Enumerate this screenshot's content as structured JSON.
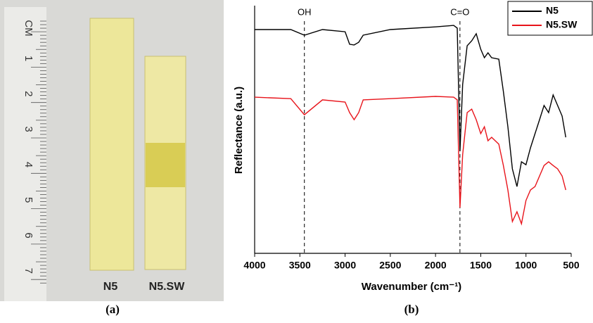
{
  "photo": {
    "ruler_unit": "CM",
    "ruler_marks": [
      1,
      2,
      3,
      4,
      5,
      6,
      7
    ],
    "samples": [
      "N5",
      "N5.SW"
    ],
    "caption": "(a)"
  },
  "chart_data": {
    "type": "line",
    "caption": "(b)",
    "x_label": "Wavenumber (cm⁻¹)",
    "y_label": "Reflectance (a.u.)",
    "xlim": [
      4000,
      500
    ],
    "xticks": [
      4000,
      3500,
      3000,
      2500,
      2000,
      1500,
      1000,
      500
    ],
    "ylim": [
      0,
      100
    ],
    "legend": "top-right",
    "annotations": [
      {
        "text": "OH",
        "x": 3450
      },
      {
        "text": "C=O",
        "x": 1730
      }
    ],
    "x": [
      4000,
      3600,
      3450,
      3250,
      3000,
      2950,
      2900,
      2850,
      2800,
      2500,
      2000,
      1800,
      1760,
      1730,
      1700,
      1650,
      1600,
      1550,
      1500,
      1460,
      1420,
      1380,
      1300,
      1250,
      1200,
      1150,
      1100,
      1050,
      1000,
      950,
      900,
      850,
      800,
      750,
      700,
      650,
      600,
      560
    ],
    "series": [
      {
        "name": "N5",
        "color": "#000000",
        "values": [
          90.8,
          90.8,
          88.5,
          90.8,
          89.9,
          84.8,
          84.5,
          85.6,
          88.5,
          90.8,
          91.9,
          92.5,
          91.4,
          41.1,
          68.4,
          84.2,
          86.2,
          89.1,
          82.8,
          79.3,
          81.3,
          79.3,
          78.7,
          65.5,
          51.1,
          33.9,
          26.7,
          36.8,
          35.6,
          42.5,
          48.3,
          54.0,
          59.8,
          56.9,
          64.1,
          59.8,
          55.5,
          46.8
        ]
      },
      {
        "name": "N5.SW",
        "color": "#e8141b",
        "values": [
          63.2,
          62.6,
          56.0,
          62.1,
          61.2,
          56.9,
          54.0,
          56.9,
          62.1,
          62.6,
          63.5,
          63.2,
          62.1,
          18.1,
          39.7,
          56.9,
          58.3,
          54.0,
          48.3,
          51.1,
          45.4,
          46.8,
          44.0,
          35.3,
          25.3,
          12.4,
          16.4,
          11.5,
          21.0,
          25.3,
          26.7,
          31.0,
          35.3,
          36.8,
          35.3,
          33.9,
          31.0,
          25.3
        ]
      }
    ]
  }
}
